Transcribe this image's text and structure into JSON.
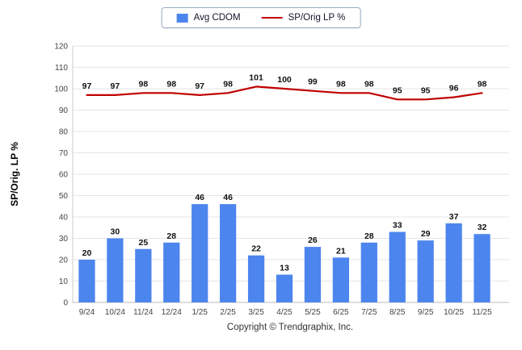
{
  "legend": {
    "items": [
      {
        "label": "Avg CDOM",
        "type": "bar",
        "color": "#4d85ee"
      },
      {
        "label": "SP/Orig LP %",
        "type": "line",
        "color": "#c00000"
      }
    ]
  },
  "chart_data": {
    "type": "bar+line",
    "categories": [
      "9/24",
      "10/24",
      "11/24",
      "12/24",
      "1/25",
      "2/25",
      "3/25",
      "4/25",
      "5/25",
      "6/25",
      "7/25",
      "8/25",
      "9/25",
      "10/25",
      "11/25"
    ],
    "series": [
      {
        "name": "Avg CDOM",
        "type": "bar",
        "color": "#4d85ee",
        "values": [
          20,
          30,
          25,
          28,
          46,
          46,
          22,
          13,
          26,
          21,
          28,
          33,
          29,
          37,
          32
        ]
      },
      {
        "name": "SP/Orig LP %",
        "type": "line",
        "color": "#c00000",
        "values": [
          97,
          97,
          98,
          98,
          97,
          98,
          101,
          100,
          99,
          98,
          98,
          95,
          95,
          96,
          98
        ]
      }
    ],
    "ylabel": "SP/Orig. LP %",
    "ylim": [
      0,
      120
    ],
    "ytick_step": 10,
    "grid": true,
    "legend_position": "top"
  },
  "footer": {
    "copyright": "Copyright © Trendgraphix, Inc."
  }
}
